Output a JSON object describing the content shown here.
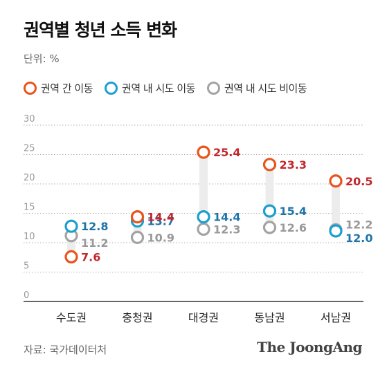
{
  "title": "권역별 청년 소득 변화",
  "unit_label": "단위: %",
  "source": "자료: 국가데이터처",
  "brand": "The JoongAng",
  "colors": {
    "inter_region": "#e8541c",
    "inter_region_label": "#c2272d",
    "intra_region": "#1a9fd0",
    "intra_region_label": "#1e74a8",
    "intra_non": "#a3a3a3",
    "intra_non_label": "#999999",
    "range_bar": "#ececec",
    "grid": "#b0b0b0",
    "axis": "#333333"
  },
  "chart_data": {
    "type": "scatter",
    "title": "권역별 청년 소득 변화",
    "unit": "%",
    "categories": [
      "수도권",
      "충청권",
      "대경권",
      "동남권",
      "서남권"
    ],
    "ylim": [
      0,
      30
    ],
    "yticks": [
      0,
      5,
      10,
      15,
      20,
      25,
      30
    ],
    "grid": true,
    "legend_position": "top-left",
    "series": [
      {
        "name": "권역 간 이동",
        "color_key": "inter_region",
        "label_color_key": "inter_region_label",
        "values": [
          7.6,
          14.4,
          25.4,
          23.3,
          20.5
        ]
      },
      {
        "name": "권역 내 시도 이동",
        "color_key": "intra_region",
        "label_color_key": "intra_region_label",
        "values": [
          12.8,
          13.7,
          14.4,
          15.4,
          12.0
        ]
      },
      {
        "name": "권역 내 시도 비이동",
        "color_key": "intra_non",
        "label_color_key": "intra_non_label",
        "values": [
          11.2,
          10.9,
          12.3,
          12.6,
          12.2
        ]
      }
    ],
    "label_positions": [
      [
        "right",
        "right",
        "right",
        "right",
        "right"
      ],
      [
        "right",
        "right",
        "right",
        "right",
        "below-right"
      ],
      [
        "below-right",
        "right",
        "right",
        "right",
        "above-right"
      ]
    ]
  }
}
